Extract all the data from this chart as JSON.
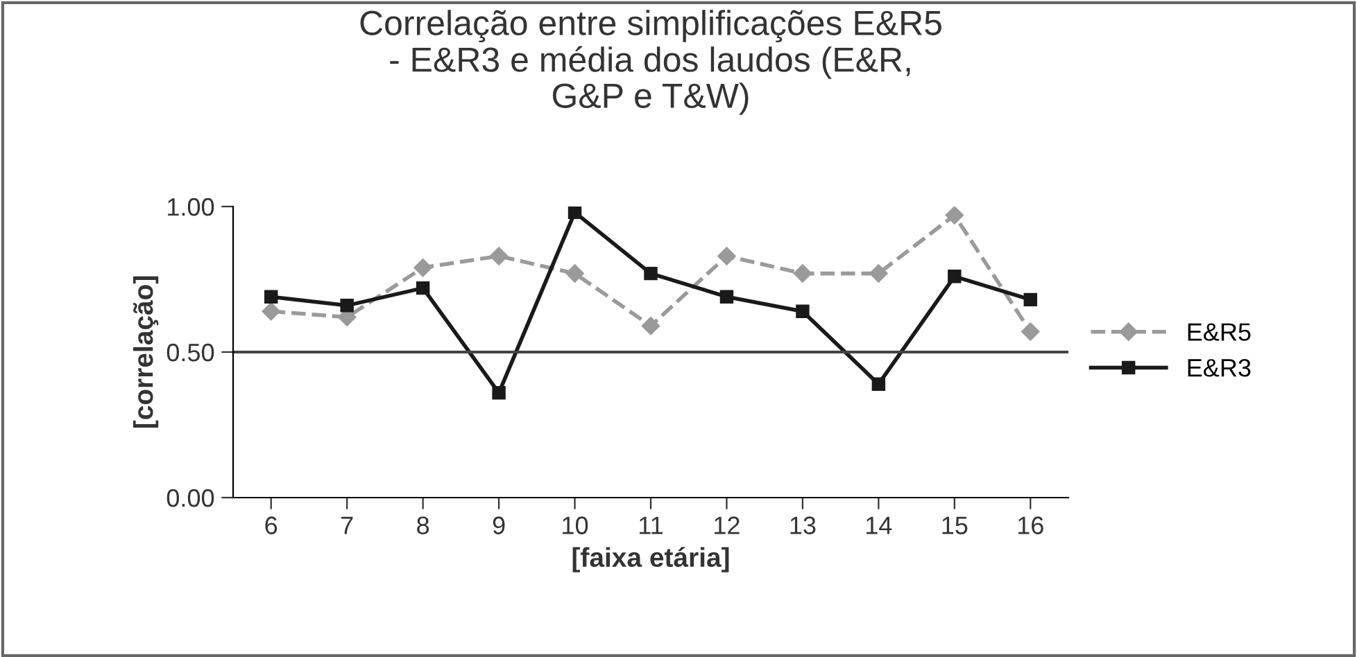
{
  "chart_data": {
    "type": "line",
    "title": "Correlação entre simplificações E&R5\n- E&R3 e média dos laudos (E&R,\nG&P e T&W)",
    "xlabel": "[faixa etária]",
    "ylabel": "[correlação]",
    "categories": [
      "6",
      "7",
      "8",
      "9",
      "10",
      "11",
      "12",
      "13",
      "14",
      "15",
      "16"
    ],
    "series": [
      {
        "name": "E&R5",
        "color": "#9a9a9a",
        "marker": "diamond",
        "line_style": "dashed",
        "values": [
          0.64,
          0.62,
          0.79,
          0.83,
          0.77,
          0.59,
          0.83,
          0.77,
          0.77,
          0.97,
          0.57
        ]
      },
      {
        "name": "E&R3",
        "color": "#1a1a1a",
        "marker": "square",
        "line_style": "solid",
        "values": [
          0.69,
          0.66,
          0.72,
          0.36,
          0.98,
          0.77,
          0.69,
          0.64,
          0.39,
          0.76,
          0.68
        ]
      }
    ],
    "ylim": [
      0,
      1
    ],
    "yticks": [
      {
        "value": 0,
        "label": "0.00"
      },
      {
        "value": 0.5,
        "label": "0.50"
      },
      {
        "value": 1,
        "label": "1.00"
      }
    ],
    "ref_lines": [
      {
        "axis": "y",
        "value": 0.5,
        "color": "#444444"
      }
    ],
    "grid": false,
    "legend": "right"
  }
}
